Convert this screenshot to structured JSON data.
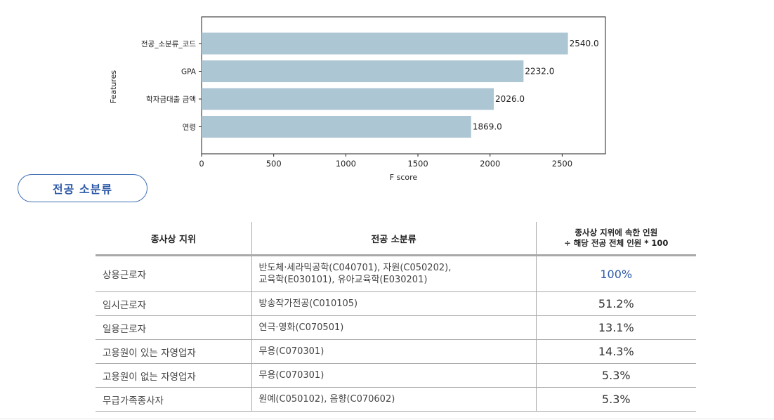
{
  "chart_data": {
    "type": "bar",
    "orientation": "horizontal",
    "categories": [
      "전공_소분류_코드",
      "GPA",
      "학자금대출 금액",
      "연령"
    ],
    "values": [
      2540.0,
      2232.0,
      2026.0,
      1869.0
    ],
    "value_labels": [
      "2540.0",
      "2232.0",
      "2026.0",
      "1869.0"
    ],
    "xlabel": "F score",
    "ylabel": "Features",
    "xlim": [
      0,
      2800
    ],
    "xticks": [
      0,
      500,
      1000,
      1500,
      2000,
      2500
    ],
    "bar_color": "#adc6d4",
    "grid": false,
    "legend": "none"
  },
  "section_label": "전공 소분류",
  "accent_color": "#2d5aa8",
  "table": {
    "headers": [
      "종사상 지위",
      "전공 소분류",
      "종사상 지위에 속한 인원",
      "÷ 해당 전공 전체 인원 * 100"
    ],
    "rows": [
      {
        "status": "상용근로자",
        "major_line1": "반도체·세라믹공학(C040701), 자원(C050202),",
        "major_line2": "교육학(E030101), 유아교육학(E030201)",
        "ratio": "100%"
      },
      {
        "status": "임시근로자",
        "major_line1": "방송작가전공(C010105)",
        "major_line2": "",
        "ratio": "51.2%"
      },
      {
        "status": "일용근로자",
        "major_line1": "연극·영화(C070501)",
        "major_line2": "",
        "ratio": "13.1%"
      },
      {
        "status": "고용원이 있는 자영업자",
        "major_line1": "무용(C070301)",
        "major_line2": "",
        "ratio": "14.3%"
      },
      {
        "status": "고용원이 없는 자영업자",
        "major_line1": "무용(C070301)",
        "major_line2": "",
        "ratio": "5.3%"
      },
      {
        "status": "무급가족종사자",
        "major_line1": "원예(C050102), 음향(C070602)",
        "major_line2": "",
        "ratio": "5.3%"
      }
    ]
  }
}
